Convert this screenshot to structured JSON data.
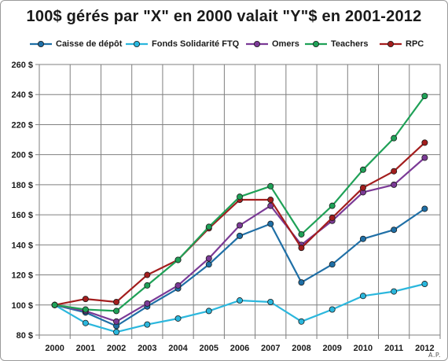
{
  "chart_data": {
    "type": "line",
    "title": "100$ gérés par \"X\" en 2000 valait \"Y\"$ en 2001-2012",
    "x": [
      "2000",
      "2001",
      "2002",
      "2003",
      "2004",
      "2005",
      "2006",
      "2007",
      "2008",
      "2009",
      "2010",
      "2011",
      "2012"
    ],
    "ylim": [
      80,
      260
    ],
    "yticks": [
      80,
      100,
      120,
      140,
      160,
      180,
      200,
      220,
      240,
      260
    ],
    "ytick_labels": [
      "80 $",
      "100 $",
      "120 $",
      "140 $",
      "160 $",
      "180 $",
      "200 $",
      "220 $",
      "240 $",
      "260 $"
    ],
    "grid": true,
    "legend_position": "top",
    "series": [
      {
        "name": "Caisse de dépôt",
        "color": "#1f6fa6",
        "values": [
          100,
          95,
          86,
          99,
          111,
          127,
          146,
          154,
          115,
          127,
          144,
          150,
          164
        ]
      },
      {
        "name": "Fonds Solidarité FTQ",
        "color": "#2bb7dd",
        "values": [
          100,
          88,
          82,
          87,
          91,
          96,
          103,
          102,
          89,
          97,
          106,
          109,
          114
        ]
      },
      {
        "name": "Omers",
        "color": "#7b3a96",
        "values": [
          100,
          96,
          89,
          101,
          113,
          131,
          153,
          166,
          140,
          156,
          175,
          180,
          198
        ]
      },
      {
        "name": "Teachers",
        "color": "#1fa157",
        "values": [
          100,
          97,
          96,
          113,
          130,
          152,
          172,
          179,
          147,
          166,
          190,
          211,
          239
        ]
      },
      {
        "name": "RPC",
        "color": "#a31d1d",
        "values": [
          100,
          104,
          102,
          120,
          130,
          151,
          170,
          170,
          138,
          158,
          178,
          189,
          208
        ]
      }
    ]
  },
  "credit": "A.P."
}
